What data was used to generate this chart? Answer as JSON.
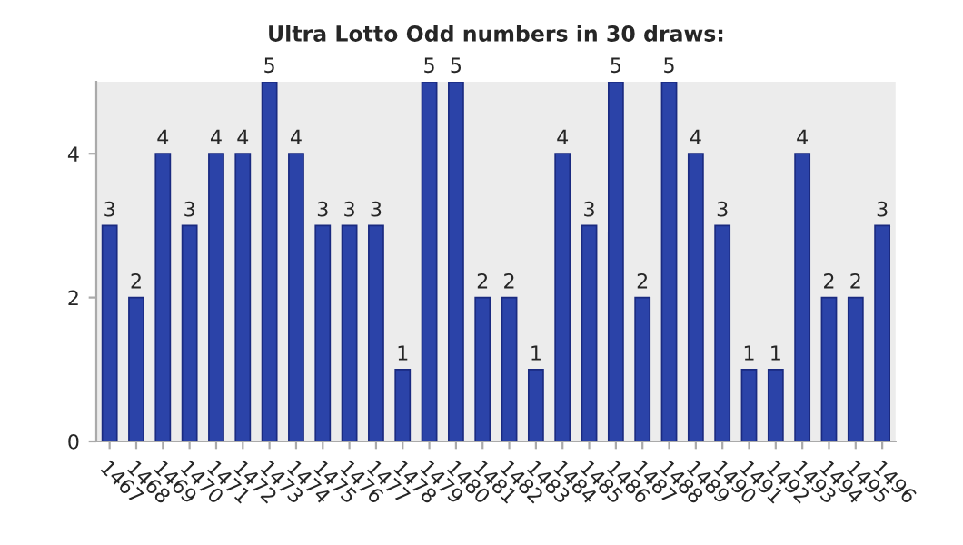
{
  "chart_data": {
    "type": "bar",
    "title": "Ultra Lotto Odd numbers in 30 draws:",
    "categories": [
      "1467",
      "1468",
      "1469",
      "1470",
      "1471",
      "1472",
      "1473",
      "1474",
      "1475",
      "1476",
      "1477",
      "1478",
      "1479",
      "1480",
      "1481",
      "1482",
      "1483",
      "1484",
      "1485",
      "1486",
      "1487",
      "1488",
      "1489",
      "1490",
      "1491",
      "1492",
      "1493",
      "1494",
      "1495",
      "1496"
    ],
    "values": [
      3,
      2,
      4,
      3,
      4,
      4,
      5,
      4,
      3,
      3,
      3,
      1,
      5,
      5,
      2,
      2,
      1,
      4,
      3,
      5,
      2,
      5,
      4,
      3,
      1,
      1,
      4,
      2,
      2,
      3
    ],
    "color": "#2b43a8",
    "ylim": [
      0,
      5
    ],
    "yticks": [
      0,
      2,
      4
    ],
    "data_labels": true,
    "grid": false,
    "legend": false
  }
}
